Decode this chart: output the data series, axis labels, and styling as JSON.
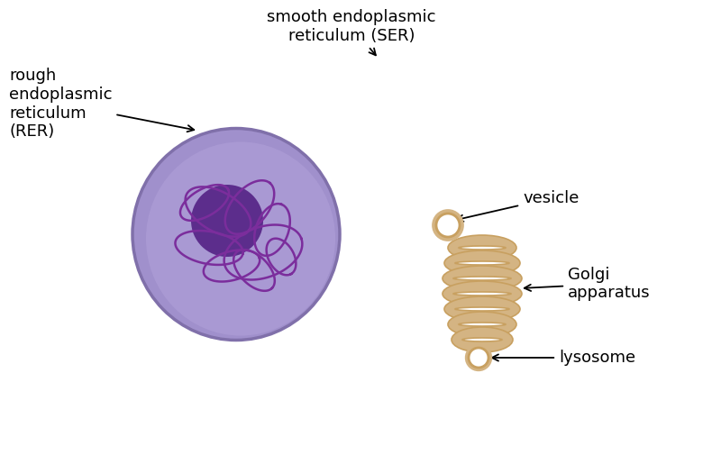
{
  "background_color": "#ffffff",
  "membrane_fill": "#D4B483",
  "membrane_edge": "#C8A060",
  "ribosome_color": "#CC1111",
  "nucleus_fill": "#9988CC",
  "nucleus_edge": "#7766AA",
  "nucleolus_fill": "#5C2D8C",
  "chromatin_color": "#7722AA",
  "golgi_fill": "#D4B483",
  "golgi_edge": "#B89050",
  "text_color": "#000000",
  "fontsize": 13,
  "label_RER": "rough\nendoplasmic\nreticulum\n(RER)",
  "label_SER": "smooth endoplasmic\nreticulum (SER)",
  "label_vesicle": "vesicle",
  "label_golgi": "Golgi\napparatus",
  "label_lysosome": "lysosome"
}
